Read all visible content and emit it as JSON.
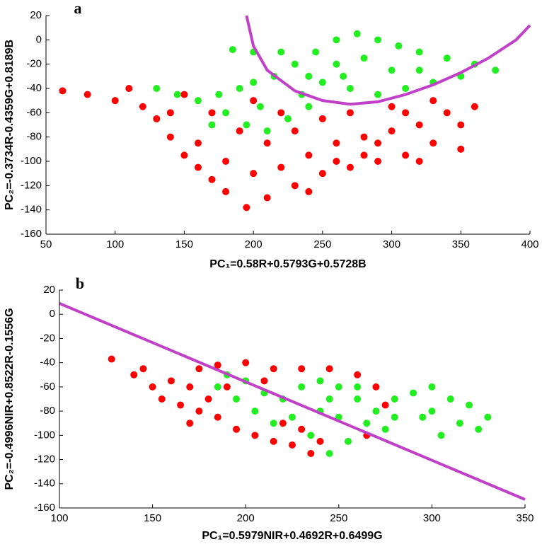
{
  "chart_data": [
    {
      "type": "scatter",
      "label": "a",
      "xlabel": "PC₁=0.58R+0.5793G+0.5728B",
      "ylabel": "PC₂=-0.3734R-0.4359G+0.8189B",
      "xlim": [
        50,
        400
      ],
      "ylim": [
        -160,
        20
      ],
      "xticks": [
        50,
        100,
        150,
        200,
        250,
        300,
        350,
        400
      ],
      "yticks": [
        20,
        0,
        -20,
        -40,
        -60,
        -80,
        -100,
        -120,
        -140,
        -160
      ],
      "series": [
        {
          "type": "scatter",
          "color": "#ff0000",
          "x": [
            62,
            80,
            100,
            110,
            120,
            130,
            140,
            150,
            160,
            170,
            180,
            195,
            210,
            230,
            250,
            270,
            290,
            310,
            330,
            350,
            360,
            340,
            320,
            300,
            280,
            260,
            240,
            220,
            200,
            180,
            160,
            140,
            150,
            170,
            190,
            210,
            230,
            250,
            270,
            300,
            330,
            220,
            200,
            260,
            290,
            320,
            240,
            280,
            350,
            310
          ],
          "y": [
            -42,
            -45,
            -50,
            -40,
            -55,
            -65,
            -80,
            -95,
            -105,
            -115,
            -125,
            -138,
            -130,
            -120,
            -110,
            -105,
            -100,
            -95,
            -85,
            -70,
            -55,
            -60,
            -70,
            -75,
            -80,
            -85,
            -95,
            -105,
            -110,
            -100,
            -85,
            -60,
            -45,
            -60,
            -75,
            -85,
            -75,
            -65,
            -60,
            -55,
            -50,
            -60,
            -50,
            -100,
            -85,
            -100,
            -125,
            -95,
            -90,
            -60
          ]
        },
        {
          "type": "scatter",
          "color": "#22ee22",
          "x": [
            130,
            145,
            160,
            175,
            190,
            200,
            180,
            195,
            210,
            225,
            240,
            215,
            230,
            245,
            260,
            275,
            290,
            305,
            320,
            340,
            360,
            375,
            350,
            330,
            310,
            290,
            270,
            250,
            235,
            260,
            280,
            300,
            220,
            200,
            185,
            265,
            320,
            240,
            205,
            170
          ],
          "y": [
            -40,
            -45,
            -50,
            -45,
            -40,
            -35,
            -60,
            -70,
            -75,
            -65,
            -55,
            -30,
            -20,
            -10,
            0,
            5,
            0,
            -5,
            -10,
            -15,
            -20,
            -25,
            -30,
            -35,
            -40,
            -45,
            -40,
            -35,
            -45,
            -20,
            -15,
            -25,
            -10,
            -10,
            -8,
            -30,
            -25,
            -30,
            -55,
            -70
          ]
        },
        {
          "type": "line",
          "color": "#c040c8",
          "x": [
            195,
            200,
            210,
            230,
            250,
            270,
            290,
            310,
            330,
            350,
            370,
            390,
            400
          ],
          "y": [
            20,
            -5,
            -25,
            -42,
            -50,
            -53,
            -51,
            -45,
            -37,
            -27,
            -15,
            0,
            12
          ]
        }
      ]
    },
    {
      "type": "scatter",
      "label": "b",
      "xlabel": "PC₁=0.5979NIR+0.4692R+0.6499G",
      "ylabel": "PC₂=-0.4996NIR+0.8522R-0.1556G",
      "xlim": [
        100,
        350
      ],
      "ylim": [
        -160,
        20
      ],
      "xticks": [
        100,
        150,
        200,
        250,
        300,
        350
      ],
      "yticks": [
        20,
        0,
        -20,
        -40,
        -60,
        -80,
        -100,
        -120,
        -140,
        -160
      ],
      "series": [
        {
          "type": "scatter",
          "color": "#ff0000",
          "x": [
            128,
            140,
            150,
            160,
            170,
            145,
            155,
            165,
            175,
            180,
            185,
            195,
            205,
            215,
            225,
            235,
            230,
            220,
            200,
            215,
            230,
            245,
            260,
            270,
            275,
            265,
            210,
            190,
            175,
            185,
            240,
            170
          ],
          "y": [
            -37,
            -50,
            -60,
            -55,
            -60,
            -45,
            -70,
            -75,
            -80,
            -70,
            -85,
            -95,
            -100,
            -105,
            -108,
            -115,
            -95,
            -90,
            -40,
            -45,
            -45,
            -45,
            -50,
            -60,
            -75,
            -100,
            -55,
            -60,
            -45,
            -42,
            -105,
            -90
          ]
        },
        {
          "type": "scatter",
          "color": "#22ee22",
          "x": [
            190,
            200,
            210,
            220,
            230,
            240,
            250,
            260,
            270,
            280,
            290,
            300,
            310,
            320,
            330,
            315,
            295,
            275,
            255,
            245,
            235,
            225,
            205,
            195,
            185,
            250,
            265,
            280,
            300,
            240,
            260,
            215,
            305,
            325,
            245
          ],
          "y": [
            -50,
            -55,
            -65,
            -70,
            -60,
            -55,
            -60,
            -70,
            -80,
            -70,
            -65,
            -60,
            -70,
            -75,
            -85,
            -90,
            -85,
            -95,
            -105,
            -115,
            -100,
            -85,
            -80,
            -70,
            -60,
            -85,
            -90,
            -85,
            -80,
            -80,
            -60,
            -90,
            -100,
            -95,
            -70
          ]
        },
        {
          "type": "line",
          "color": "#c040c8",
          "x": [
            100,
            350
          ],
          "y": [
            9,
            -153
          ]
        }
      ]
    }
  ]
}
